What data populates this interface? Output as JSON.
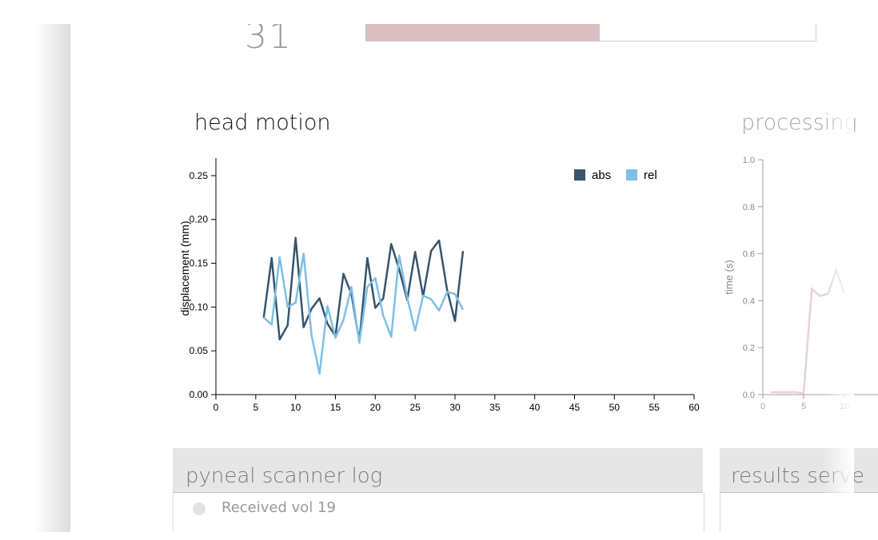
{
  "volume_counter": {
    "value": "31"
  },
  "progress": {
    "fraction": 0.52,
    "fill_color": "#dcbfc2"
  },
  "head_motion": {
    "title": "head motion",
    "chart_data": {
      "type": "line",
      "xlabel": "",
      "ylabel": "displacement (mm)",
      "xlim": [
        0,
        60
      ],
      "ylim": [
        0,
        0.27
      ],
      "x_ticks": [
        "0",
        "5",
        "10",
        "15",
        "20",
        "25",
        "30",
        "35",
        "40",
        "45",
        "50",
        "55",
        "60"
      ],
      "y_ticks": [
        "0.00",
        "0.05",
        "0.10",
        "0.15",
        "0.20",
        "0.25"
      ],
      "legend_position": "top-right",
      "x": [
        6,
        7,
        8,
        9,
        10,
        11,
        12,
        13,
        14,
        15,
        16,
        17,
        18,
        19,
        20,
        21,
        22,
        23,
        24,
        25,
        26,
        27,
        28,
        29,
        30,
        31
      ],
      "series": [
        {
          "name": "abs",
          "color": "#36556b",
          "values": [
            0.088,
            0.156,
            0.063,
            0.079,
            0.179,
            0.077,
            0.098,
            0.11,
            0.081,
            0.067,
            0.138,
            0.115,
            0.061,
            0.156,
            0.099,
            0.11,
            0.172,
            0.143,
            0.108,
            0.163,
            0.112,
            0.164,
            0.176,
            0.12,
            0.084,
            0.164
          ]
        },
        {
          "name": "rel",
          "color": "#7fbfe6",
          "values": [
            0.088,
            0.08,
            0.157,
            0.1,
            0.105,
            0.161,
            0.068,
            0.024,
            0.101,
            0.065,
            0.085,
            0.123,
            0.059,
            0.123,
            0.133,
            0.09,
            0.066,
            0.159,
            0.111,
            0.073,
            0.113,
            0.109,
            0.096,
            0.117,
            0.115,
            0.097
          ]
        }
      ]
    }
  },
  "processing": {
    "title": "processing",
    "chart_data": {
      "type": "line",
      "ylabel": "time (s)",
      "ylim": [
        0,
        1.0
      ],
      "y_ticks": [
        "0.0",
        "0.2",
        "0.4",
        "0.6",
        "0.8",
        "1.0"
      ],
      "x_ticks": [
        "0",
        "5",
        "10"
      ],
      "series": [
        {
          "name": "",
          "color": "#e8d2d4",
          "x": [
            1,
            2,
            3,
            4,
            5,
            6,
            7,
            8,
            9,
            10
          ],
          "values": [
            0.01,
            0.01,
            0.01,
            0.01,
            0.005,
            0.45,
            0.42,
            0.43,
            0.53,
            0.43
          ]
        }
      ]
    }
  },
  "scanner_log": {
    "title": "pyneal scanner log",
    "entries": [
      "Received vol 19"
    ]
  },
  "results_server": {
    "title": "results serve"
  }
}
